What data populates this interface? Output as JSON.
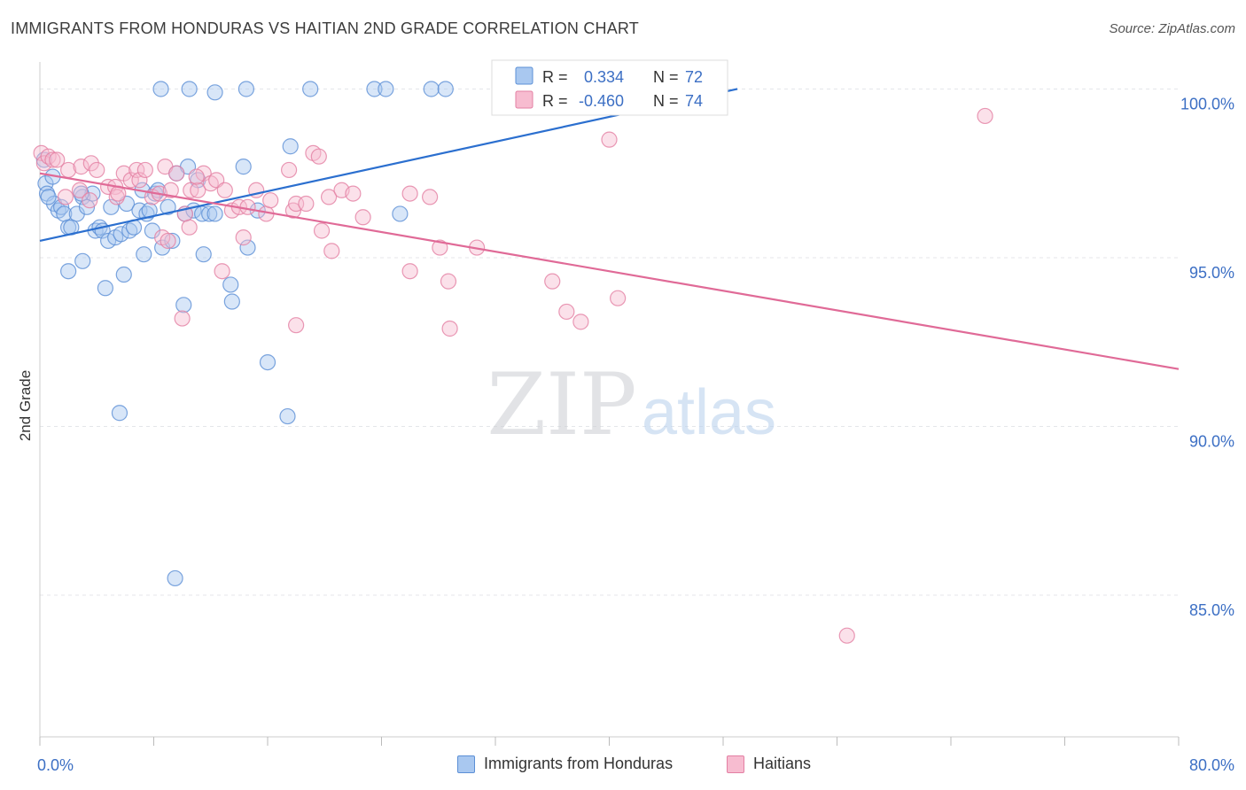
{
  "header": {
    "title": "IMMIGRANTS FROM HONDURAS VS HAITIAN 2ND GRADE CORRELATION CHART",
    "source": "Source: ZipAtlas.com"
  },
  "watermark": {
    "zip": "ZIP",
    "atlas": "atlas"
  },
  "colors": {
    "blue_fill": "#a9c8f0",
    "blue_stroke": "#5b8fd6",
    "blue_line": "#2b6fcf",
    "pink_fill": "#f7bcd0",
    "pink_stroke": "#e37fa3",
    "pink_line": "#e06a97",
    "tick_label": "#3c6fc4",
    "grid": "#e4e6ea"
  },
  "stats_legend": {
    "rows": [
      {
        "r_label": "R =",
        "r_value": "0.334",
        "n_label": "N =",
        "n_value": "72"
      },
      {
        "r_label": "R =",
        "r_value": "-0.460",
        "n_label": "N =",
        "n_value": "74"
      }
    ]
  },
  "chart_data": {
    "type": "scatter",
    "ylabel": "2nd Grade",
    "xlim": [
      0,
      80
    ],
    "ylim": [
      80.8,
      100.8
    ],
    "x_tick_labels": [
      {
        "value": 0,
        "label": "0.0%"
      },
      {
        "value": 80,
        "label": "80.0%"
      }
    ],
    "y_tick_labels": [
      {
        "value": 100,
        "label": "100.0%"
      },
      {
        "value": 95,
        "label": "95.0%"
      },
      {
        "value": 90,
        "label": "90.0%"
      },
      {
        "value": 85,
        "label": "85.0%"
      }
    ],
    "x_minor_ticks": [
      0,
      8,
      16,
      24,
      32,
      40,
      48,
      56,
      64,
      72,
      80
    ],
    "legend_position": "top-center",
    "series": [
      {
        "name": "Immigrants from Honduras",
        "color": "blue",
        "trend": {
          "x": [
            0,
            49
          ],
          "y": [
            95.5,
            100.0
          ]
        },
        "points": [
          [
            8.5,
            100
          ],
          [
            10.5,
            100
          ],
          [
            12.3,
            99.9
          ],
          [
            14.5,
            100
          ],
          [
            19.0,
            100
          ],
          [
            23.5,
            100
          ],
          [
            24.3,
            100
          ],
          [
            27.5,
            100
          ],
          [
            28.5,
            100
          ],
          [
            42.0,
            100
          ],
          [
            0.3,
            97.9
          ],
          [
            0.4,
            97.2
          ],
          [
            0.5,
            96.9
          ],
          [
            0.9,
            97.4
          ],
          [
            1.0,
            96.6
          ],
          [
            1.3,
            96.4
          ],
          [
            1.5,
            96.5
          ],
          [
            1.7,
            96.3
          ],
          [
            2.0,
            95.9
          ],
          [
            2.2,
            95.9
          ],
          [
            2.6,
            96.3
          ],
          [
            3.0,
            96.8
          ],
          [
            3.3,
            96.5
          ],
          [
            3.7,
            96.9
          ],
          [
            3.9,
            95.8
          ],
          [
            4.2,
            95.9
          ],
          [
            4.4,
            95.8
          ],
          [
            4.8,
            95.5
          ],
          [
            5.0,
            96.5
          ],
          [
            5.3,
            95.6
          ],
          [
            5.7,
            95.7
          ],
          [
            6.1,
            96.6
          ],
          [
            6.3,
            95.8
          ],
          [
            6.6,
            95.9
          ],
          [
            7.0,
            96.4
          ],
          [
            7.2,
            97.0
          ],
          [
            7.5,
            96.3
          ],
          [
            7.7,
            96.4
          ],
          [
            7.9,
            95.8
          ],
          [
            8.1,
            96.9
          ],
          [
            8.3,
            97.0
          ],
          [
            8.6,
            95.3
          ],
          [
            9.0,
            96.5
          ],
          [
            9.3,
            95.5
          ],
          [
            9.6,
            97.5
          ],
          [
            10.2,
            96.3
          ],
          [
            10.4,
            97.7
          ],
          [
            10.8,
            96.4
          ],
          [
            11.1,
            97.3
          ],
          [
            11.4,
            96.3
          ],
          [
            11.9,
            96.3
          ],
          [
            12.3,
            96.3
          ],
          [
            14.3,
            97.7
          ],
          [
            14.6,
            95.3
          ],
          [
            15.3,
            96.4
          ],
          [
            17.6,
            98.3
          ],
          [
            25.3,
            96.3
          ],
          [
            3.0,
            94.9
          ],
          [
            2.0,
            94.6
          ],
          [
            4.6,
            94.1
          ],
          [
            5.9,
            94.5
          ],
          [
            7.3,
            95.1
          ],
          [
            11.5,
            95.1
          ],
          [
            13.4,
            94.2
          ],
          [
            10.1,
            93.6
          ],
          [
            13.5,
            93.7
          ],
          [
            5.6,
            90.4
          ],
          [
            16.0,
            91.9
          ],
          [
            17.4,
            90.3
          ],
          [
            9.5,
            85.5
          ],
          [
            0.6,
            96.8
          ],
          [
            2.9,
            96.9
          ]
        ]
      },
      {
        "name": "Haitians",
        "color": "pink",
        "trend": {
          "x": [
            0,
            80
          ],
          "y": [
            97.5,
            91.7
          ]
        },
        "points": [
          [
            0.1,
            98.1
          ],
          [
            0.3,
            97.8
          ],
          [
            0.6,
            98.0
          ],
          [
            0.9,
            97.9
          ],
          [
            1.2,
            97.9
          ],
          [
            2.0,
            97.6
          ],
          [
            2.9,
            97.7
          ],
          [
            3.6,
            97.8
          ],
          [
            4.0,
            97.6
          ],
          [
            4.8,
            97.1
          ],
          [
            5.3,
            97.1
          ],
          [
            5.4,
            96.8
          ],
          [
            5.9,
            97.5
          ],
          [
            6.4,
            97.3
          ],
          [
            6.8,
            97.6
          ],
          [
            7.0,
            97.3
          ],
          [
            7.4,
            97.6
          ],
          [
            7.9,
            96.8
          ],
          [
            8.4,
            96.9
          ],
          [
            8.8,
            97.7
          ],
          [
            9.2,
            97.0
          ],
          [
            9.6,
            97.5
          ],
          [
            10.2,
            96.3
          ],
          [
            10.6,
            97.0
          ],
          [
            11.1,
            97.0
          ],
          [
            11.5,
            97.5
          ],
          [
            12.0,
            97.2
          ],
          [
            12.4,
            97.3
          ],
          [
            13.0,
            97.0
          ],
          [
            13.5,
            96.4
          ],
          [
            14.0,
            96.5
          ],
          [
            14.6,
            96.5
          ],
          [
            15.2,
            97.0
          ],
          [
            15.9,
            96.3
          ],
          [
            16.2,
            96.7
          ],
          [
            17.5,
            97.6
          ],
          [
            17.8,
            96.4
          ],
          [
            18.0,
            96.6
          ],
          [
            18.7,
            96.6
          ],
          [
            19.2,
            98.1
          ],
          [
            19.6,
            98.0
          ],
          [
            20.3,
            96.8
          ],
          [
            21.2,
            97.0
          ],
          [
            22.0,
            96.9
          ],
          [
            22.7,
            96.2
          ],
          [
            26.0,
            96.9
          ],
          [
            27.4,
            96.8
          ],
          [
            28.1,
            95.3
          ],
          [
            30.7,
            95.3
          ],
          [
            33.0,
            99.9
          ],
          [
            40.0,
            98.5
          ],
          [
            66.4,
            99.2
          ],
          [
            1.8,
            96.8
          ],
          [
            2.8,
            97.0
          ],
          [
            3.5,
            96.7
          ],
          [
            5.5,
            96.9
          ],
          [
            8.6,
            95.6
          ],
          [
            9.0,
            95.5
          ],
          [
            10.5,
            95.9
          ],
          [
            14.3,
            95.6
          ],
          [
            19.8,
            95.8
          ],
          [
            20.5,
            95.2
          ],
          [
            26.0,
            94.6
          ],
          [
            28.7,
            94.3
          ],
          [
            36.0,
            94.3
          ],
          [
            37.0,
            93.4
          ],
          [
            38.0,
            93.1
          ],
          [
            40.6,
            93.8
          ],
          [
            10.0,
            93.2
          ],
          [
            12.8,
            94.6
          ],
          [
            18.0,
            93.0
          ],
          [
            28.8,
            92.9
          ],
          [
            56.7,
            83.8
          ],
          [
            11.0,
            97.4
          ]
        ]
      }
    ]
  }
}
